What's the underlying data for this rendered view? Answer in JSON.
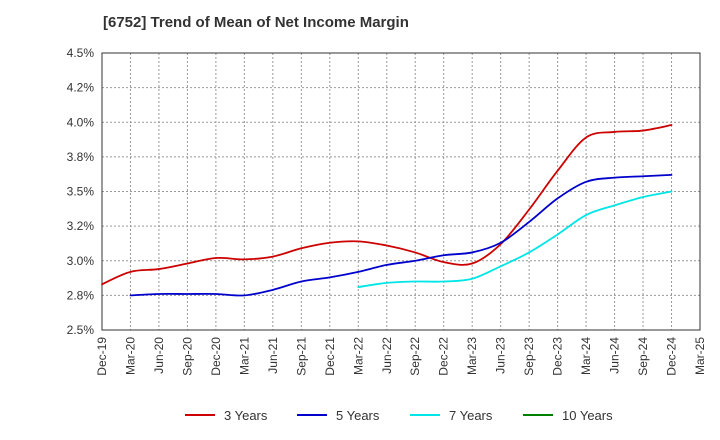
{
  "chart_data": {
    "type": "line",
    "title": "[6752]  Trend of Mean of Net Income Margin",
    "xlabel": "",
    "ylabel": "",
    "ylim": [
      2.5,
      4.5
    ],
    "yticks": [
      "2.5%",
      "2.8%",
      "3.0%",
      "3.2%",
      "3.5%",
      "3.8%",
      "4.0%",
      "4.2%",
      "4.5%"
    ],
    "x_ticks": [
      "Dec-19",
      "Mar-20",
      "Jun-20",
      "Sep-20",
      "Dec-20",
      "Mar-21",
      "Jun-21",
      "Sep-21",
      "Dec-21",
      "Mar-22",
      "Jun-22",
      "Sep-22",
      "Dec-22",
      "Mar-23",
      "Jun-23",
      "Sep-23",
      "Dec-23",
      "Mar-24",
      "Jun-24",
      "Sep-24",
      "Dec-24",
      "Mar-25"
    ],
    "grid": true,
    "legend_position": "bottom",
    "series": [
      {
        "name": "3 Years",
        "color": "#cc0000",
        "values": [
          2.83,
          2.92,
          2.94,
          2.98,
          3.02,
          3.01,
          3.03,
          3.09,
          3.13,
          3.14,
          3.11,
          3.06,
          2.99,
          2.98,
          3.12,
          3.37,
          3.65,
          3.89,
          3.93,
          3.94,
          3.98,
          null
        ]
      },
      {
        "name": "5 Years",
        "color": "#0000cc",
        "values": [
          null,
          2.75,
          2.76,
          2.76,
          2.76,
          2.75,
          2.79,
          2.85,
          2.88,
          2.92,
          2.97,
          3.0,
          3.04,
          3.06,
          3.13,
          3.28,
          3.45,
          3.57,
          3.6,
          3.61,
          3.62,
          null
        ]
      },
      {
        "name": "7 Years",
        "color": "#00e5e5",
        "values": [
          null,
          null,
          null,
          null,
          null,
          null,
          null,
          null,
          null,
          2.81,
          2.84,
          2.85,
          2.85,
          2.87,
          2.96,
          3.06,
          3.19,
          3.33,
          3.4,
          3.46,
          3.5,
          null
        ]
      },
      {
        "name": "10 Years",
        "color": "#008000",
        "values": [
          null,
          null,
          null,
          null,
          null,
          null,
          null,
          null,
          null,
          null,
          null,
          null,
          null,
          null,
          null,
          null,
          null,
          null,
          null,
          null,
          null,
          null
        ]
      }
    ]
  }
}
